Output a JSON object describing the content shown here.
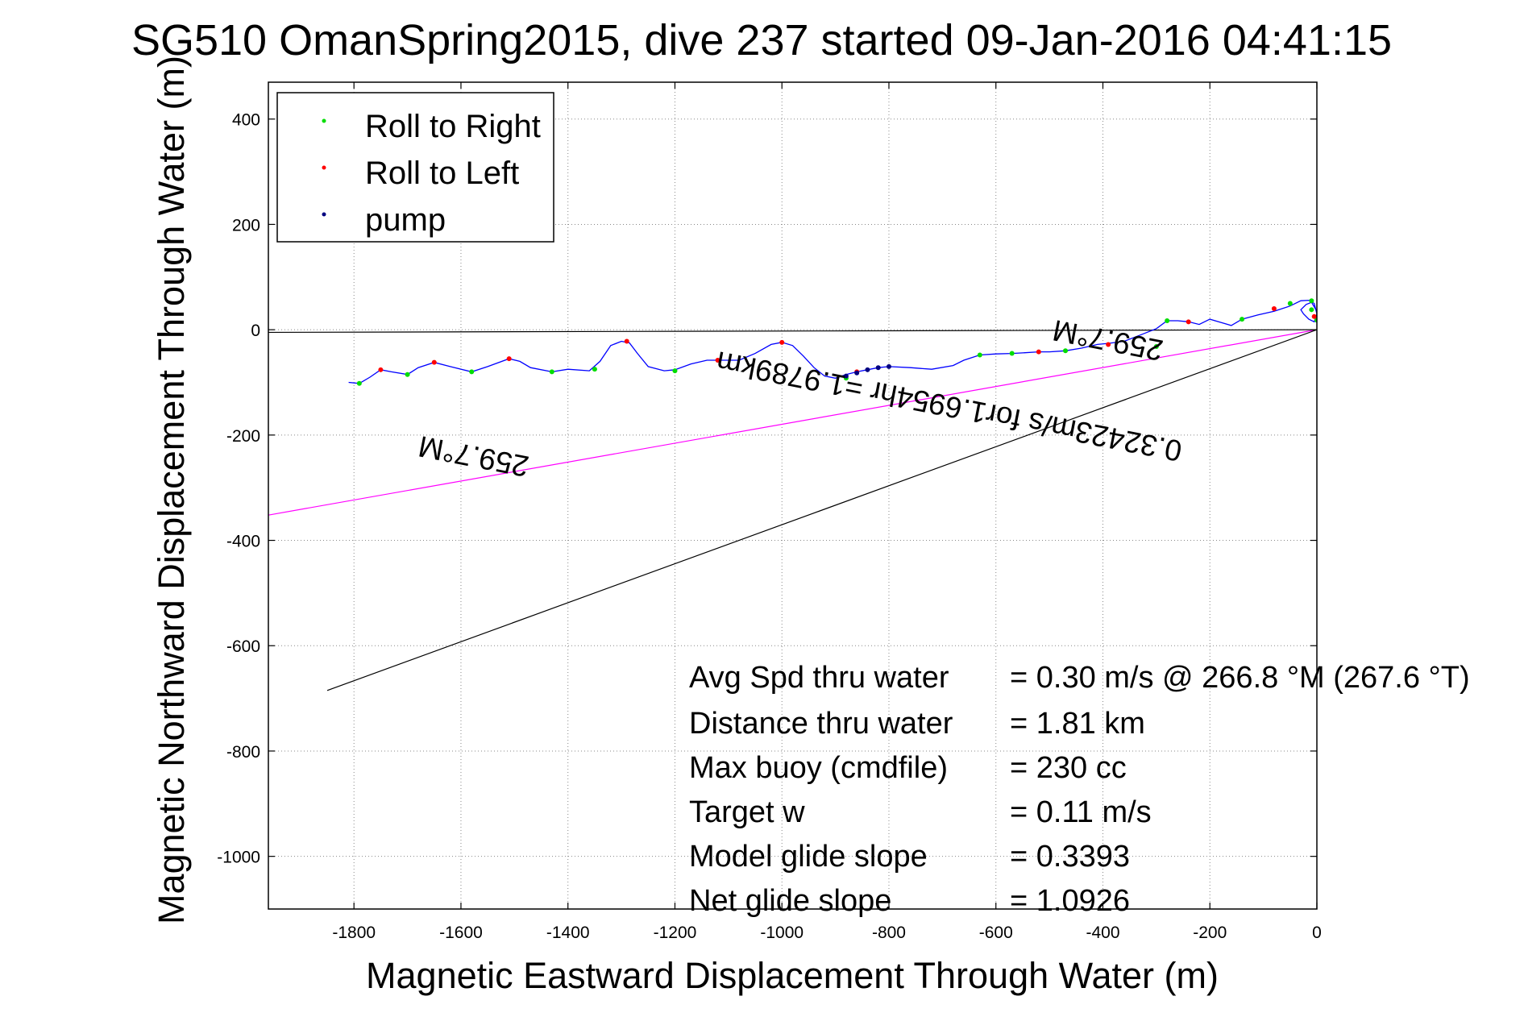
{
  "chart_data": {
    "type": "line",
    "title": "SG510 OmanSpring2015, dive 237 started 09-Jan-2016 04:41:15",
    "xlabel": "Magnetic Eastward Displacement Through Water (m)",
    "ylabel": "Magnetic Northward Displacement Through Water (m)",
    "xlim": [
      -1960,
      0
    ],
    "ylim": [
      -1100,
      470
    ],
    "xticks": [
      -1800,
      -1600,
      -1400,
      -1200,
      -1000,
      -800,
      -600,
      -400,
      -200,
      0
    ],
    "yticks": [
      -1000,
      -800,
      -600,
      -400,
      -200,
      0,
      200,
      400
    ],
    "grid": true,
    "legend_position": "top-left",
    "colors": {
      "track": "#0000ff",
      "roll_right": "#00dd00",
      "roll_left": "#ff0000",
      "pump": "#000080",
      "heading_line": "#ff00ff",
      "black_line": "#000000"
    },
    "series": [
      {
        "name": "Roll to Right",
        "color": "#00dd00",
        "marker": "dot",
        "x": [
          -1790,
          -1700,
          -1580,
          -1430,
          -1350,
          -1200,
          -880,
          -630,
          -570,
          -470,
          -300,
          -280,
          -140,
          -50,
          -10,
          0,
          -10
        ],
        "y": [
          -102,
          -85,
          -80,
          -80,
          -75,
          -78,
          -92,
          -48,
          -45,
          -40,
          -32,
          17,
          20,
          50,
          55,
          18,
          38
        ]
      },
      {
        "name": "Roll to Left",
        "color": "#ff0000",
        "marker": "dot",
        "x": [
          -1750,
          -1650,
          -1510,
          -1290,
          -1120,
          -1000,
          -860,
          -520,
          -390,
          -240,
          -80,
          -5
        ],
        "y": [
          -76,
          -62,
          -55,
          -22,
          -58,
          -24,
          -80,
          -42,
          -28,
          15,
          40,
          25
        ]
      },
      {
        "name": "pump",
        "color": "#000080",
        "marker": "dot",
        "x": [
          -880,
          -860,
          -840,
          -820,
          -800
        ],
        "y": [
          -88,
          -82,
          -76,
          -72,
          -70
        ]
      },
      {
        "name": "",
        "color": "#0000ff",
        "marker": "line",
        "x": [
          -1810,
          -1790,
          -1770,
          -1750,
          -1730,
          -1700,
          -1680,
          -1650,
          -1620,
          -1580,
          -1550,
          -1510,
          -1490,
          -1470,
          -1430,
          -1400,
          -1360,
          -1340,
          -1320,
          -1300,
          -1285,
          -1270,
          -1250,
          -1220,
          -1200,
          -1170,
          -1140,
          -1120,
          -1080,
          -1050,
          -1020,
          -1000,
          -980,
          -960,
          -940,
          -920,
          -900,
          -880,
          -860,
          -840,
          -820,
          -800,
          -760,
          -720,
          -680,
          -660,
          -630,
          -600,
          -570,
          -550,
          -520,
          -500,
          -470,
          -440,
          -410,
          -390,
          -360,
          -330,
          -300,
          -280,
          -260,
          -240,
          -220,
          -200,
          -180,
          -160,
          -140,
          -110,
          -80,
          -50,
          -30,
          -15,
          -5,
          0,
          -5,
          -15,
          -25,
          -30,
          -20,
          -10,
          0
        ],
        "y": [
          -100,
          -102,
          -90,
          -76,
          -80,
          -85,
          -72,
          -62,
          -70,
          -80,
          -70,
          -55,
          -60,
          -72,
          -80,
          -75,
          -78,
          -60,
          -30,
          -22,
          -25,
          -45,
          -70,
          -78,
          -76,
          -65,
          -58,
          -58,
          -58,
          -45,
          -28,
          -24,
          -30,
          -50,
          -72,
          -88,
          -92,
          -85,
          -80,
          -76,
          -72,
          -70,
          -72,
          -75,
          -68,
          -58,
          -48,
          -46,
          -45,
          -44,
          -42,
          -42,
          -40,
          -35,
          -28,
          -26,
          -22,
          -10,
          2,
          17,
          17,
          15,
          10,
          20,
          14,
          8,
          20,
          28,
          35,
          45,
          55,
          56,
          50,
          30,
          15,
          20,
          30,
          38,
          48,
          52,
          35
        ]
      }
    ],
    "reference_lines": [
      {
        "color": "#ff00ff",
        "x": [
          0,
          -1960
        ],
        "y": [
          0,
          -352
        ]
      },
      {
        "color": "#000000",
        "x": [
          0,
          -1960
        ],
        "y": [
          0,
          -5
        ]
      },
      {
        "color": "#000000",
        "x": [
          0,
          -1850
        ],
        "y": [
          0,
          -685
        ]
      }
    ],
    "annotations": {
      "heading_near": "259.7°M",
      "heading_far": "259.7°M",
      "speed_note": "0.32423m/s for1.6954hr =1.9789km"
    },
    "stats": [
      {
        "label": "Avg Spd thru water",
        "value": "=  0.30 m/s @ 266.8  °M (267.6 °T)"
      },
      {
        "label": "Distance thru water",
        "value": "=  1.81 km"
      },
      {
        "label": "Max buoy (cmdfile)",
        "value": "= 230 cc"
      },
      {
        "label": "Target w",
        "value": "= 0.11 m/s"
      },
      {
        "label": "Model glide slope",
        "value": "= 0.3393"
      },
      {
        "label": "Net glide slope",
        "value": "= 1.0926"
      }
    ]
  }
}
